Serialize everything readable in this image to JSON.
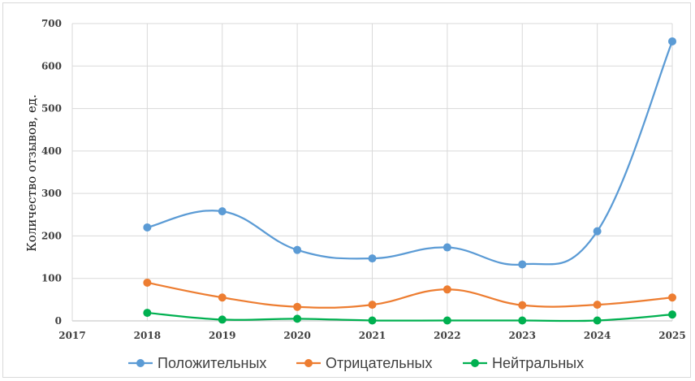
{
  "chart_data": {
    "type": "line",
    "title": "",
    "xlabel": "",
    "ylabel": "Количество отзывов, ед.",
    "x": [
      "2017",
      "2018",
      "2019",
      "2020",
      "2021",
      "2022",
      "2023",
      "2024",
      "2025"
    ],
    "ylim": [
      0,
      700
    ],
    "yticks": [
      0,
      100,
      200,
      300,
      400,
      500,
      600,
      700
    ],
    "grid": true,
    "legend_position": "bottom",
    "series": [
      {
        "name": "Положительных",
        "color": "#5b9bd5",
        "values": [
          null,
          220,
          258,
          167,
          147,
          173,
          133,
          211,
          658
        ]
      },
      {
        "name": "Отрицательных",
        "color": "#ed7d31",
        "values": [
          null,
          90,
          55,
          33,
          38,
          74,
          37,
          38,
          55
        ]
      },
      {
        "name": "Нейтральных",
        "color": "#00b050",
        "values": [
          null,
          19,
          3,
          5,
          1,
          1,
          1,
          1,
          15
        ]
      }
    ]
  }
}
